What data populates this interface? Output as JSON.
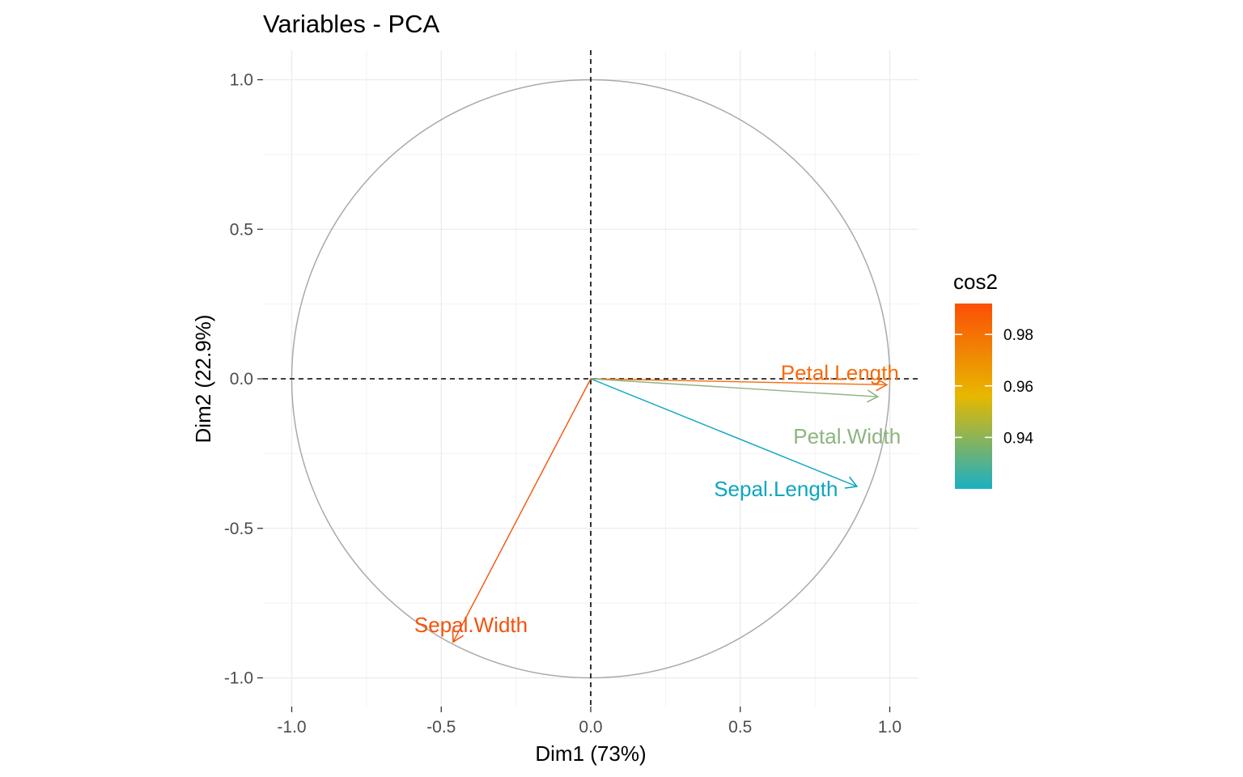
{
  "chart_data": {
    "type": "pca-variables",
    "title": "Variables - PCA",
    "xlabel": "Dim1 (73%)",
    "ylabel": "Dim2 (22.9%)",
    "xlim": [
      -1.0,
      1.0
    ],
    "ylim": [
      -1.0,
      1.0
    ],
    "x_ticks": [
      -1.0,
      -0.5,
      0.0,
      0.5,
      1.0
    ],
    "x_tick_labels": [
      "-1.0",
      "-0.5",
      "0.0",
      "0.5",
      "1.0"
    ],
    "y_ticks": [
      -1.0,
      -0.5,
      0.0,
      0.5,
      1.0
    ],
    "y_tick_labels": [
      "-1.0",
      "-0.5",
      "0.0",
      "0.5",
      "1.0"
    ],
    "grid": true,
    "unit_circle": true,
    "variables": [
      {
        "name": "Petal.Length",
        "x": 0.99,
        "y": -0.02,
        "cos2": 0.982,
        "color": "#F76B0A"
      },
      {
        "name": "Petal.Width",
        "x": 0.96,
        "y": -0.06,
        "cos2": 0.937,
        "color": "#8EB47F"
      },
      {
        "name": "Sepal.Length",
        "x": 0.89,
        "y": -0.36,
        "cos2": 0.923,
        "color": "#0CA6C0"
      },
      {
        "name": "Sepal.Width",
        "x": -0.46,
        "y": -0.88,
        "cos2": 0.99,
        "color": "#F4520D"
      }
    ],
    "legend": {
      "title": "cos2",
      "position": "right",
      "gradient_colors": [
        "#1BAFC4",
        "#E7B800",
        "#FC4E07"
      ],
      "range": [
        0.92,
        0.992
      ],
      "tick_values": [
        0.94,
        0.96,
        0.98
      ],
      "tick_labels": [
        "0.94",
        "0.96",
        "0.98"
      ]
    }
  }
}
